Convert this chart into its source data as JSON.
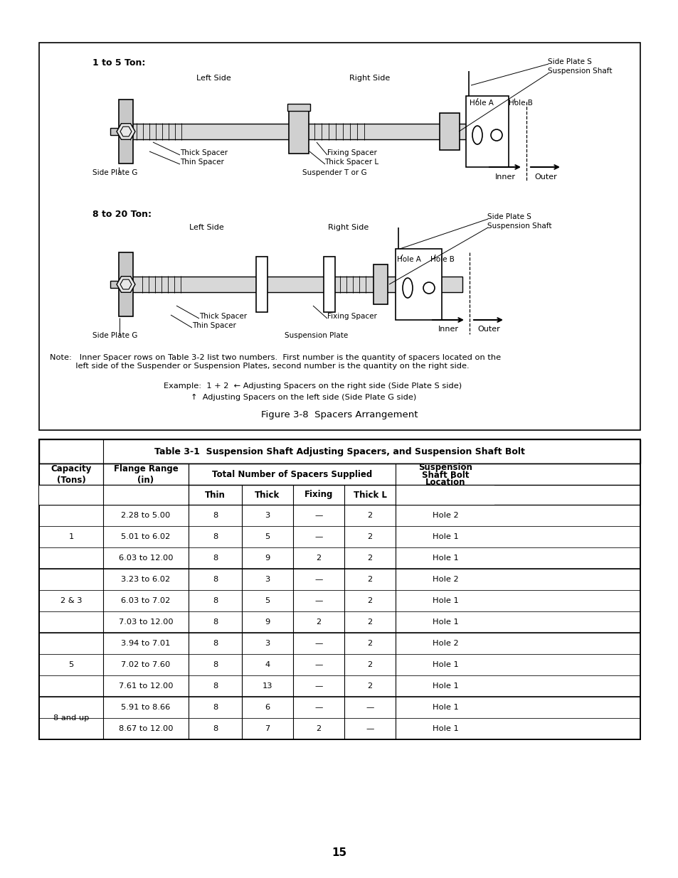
{
  "page_number": "15",
  "bg_color": "#ffffff",
  "figure_caption": "Figure 3-8  Spacers Arrangement",
  "note_text": "Note:   Inner Spacer rows on Table 3-2 list two numbers.  First number is the quantity of spacers located on the\n          left side of the Suspender or Suspension Plates, second number is the quantity on the right side.",
  "example_line1": "Example:  1 + 2  ← Adjusting Spacers on the right side (Side Plate S side)",
  "example_line2": "                    ↑  Adjusting Spacers on the left side (Side Plate G side)",
  "d1_label": "1 to 5 Ton:",
  "d2_label": "8 to 20 Ton:",
  "table_title": "Table 3-1  Suspension Shaft Adjusting Spacers, and Suspension Shaft Bolt",
  "table_rows": [
    [
      "1",
      "2.28 to 5.00",
      "8",
      "3",
      "—",
      "2",
      "Hole 2"
    ],
    [
      "1",
      "5.01 to 6.02",
      "8",
      "5",
      "—",
      "2",
      "Hole 1"
    ],
    [
      "1",
      "6.03 to 12.00",
      "8",
      "9",
      "2",
      "2",
      "Hole 1"
    ],
    [
      "2 & 3",
      "3.23 to 6.02",
      "8",
      "3",
      "—",
      "2",
      "Hole 2"
    ],
    [
      "2 & 3",
      "6.03 to 7.02",
      "8",
      "5",
      "—",
      "2",
      "Hole 1"
    ],
    [
      "2 & 3",
      "7.03 to 12.00",
      "8",
      "9",
      "2",
      "2",
      "Hole 1"
    ],
    [
      "5",
      "3.94 to 7.01",
      "8",
      "3",
      "—",
      "2",
      "Hole 2"
    ],
    [
      "5",
      "7.02 to 7.60",
      "8",
      "4",
      "—",
      "2",
      "Hole 1"
    ],
    [
      "5",
      "7.61 to 12.00",
      "8",
      "13",
      "—",
      "2",
      "Hole 1"
    ],
    [
      "8 and up",
      "5.91 to 8.66",
      "8",
      "6",
      "—",
      "—",
      "Hole 1"
    ],
    [
      "8 and up",
      "8.67 to 12.00",
      "8",
      "7",
      "2",
      "—",
      "Hole 1"
    ]
  ],
  "groups": [
    [
      "1",
      [
        0,
        1,
        2
      ]
    ],
    [
      "2 & 3",
      [
        3,
        4,
        5
      ]
    ],
    [
      "5",
      [
        6,
        7,
        8
      ]
    ],
    [
      "8 and up",
      [
        9,
        10
      ]
    ]
  ]
}
